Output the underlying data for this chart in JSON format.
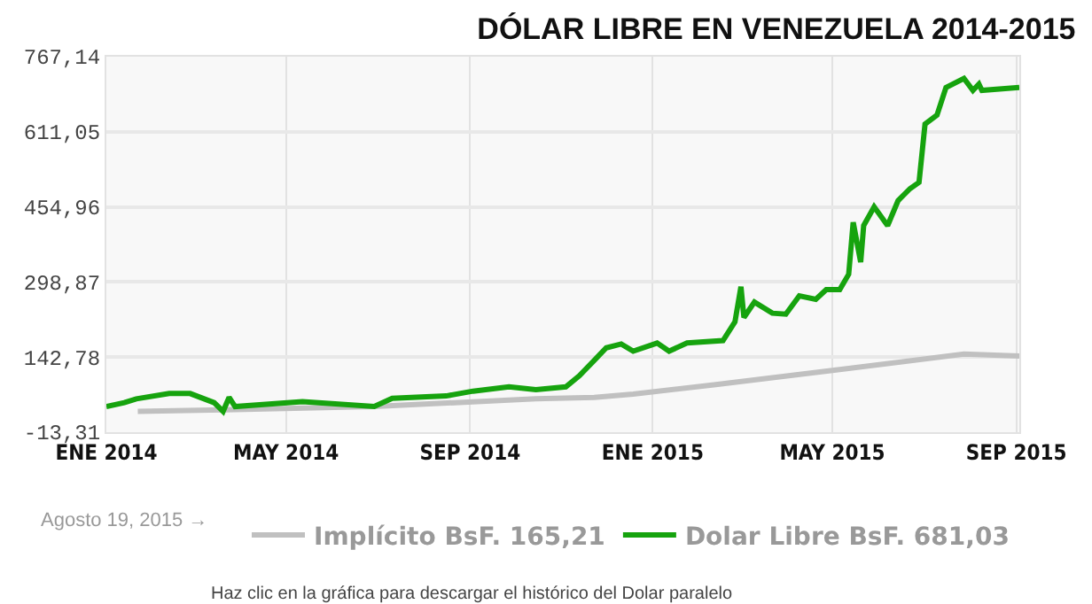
{
  "chart_data": {
    "type": "line",
    "title": "DÓLAR LIBRE EN VENEZUELA 2014-2015",
    "x": [
      "2014-01-01",
      "2014-01-13",
      "2014-01-21",
      "2014-02-12",
      "2014-02-26",
      "2014-03-14",
      "2014-03-20",
      "2014-03-24",
      "2014-03-28",
      "2014-05-12",
      "2014-06-29",
      "2014-07-11",
      "2014-08-16",
      "2014-09-03",
      "2014-09-27",
      "2014-10-15",
      "2014-11-04",
      "2014-11-13",
      "2014-11-23",
      "2014-12-01",
      "2014-12-11",
      "2014-12-19",
      "2015-01-04",
      "2015-01-12",
      "2015-01-24",
      "2015-02-17",
      "2015-02-25",
      "2015-03-01",
      "2015-03-03",
      "2015-03-10",
      "2015-03-22",
      "2015-03-31",
      "2015-04-09",
      "2015-04-20",
      "2015-04-27",
      "2015-05-06",
      "2015-05-12",
      "2015-05-15",
      "2015-05-20",
      "2015-05-22",
      "2015-05-29",
      "2015-06-07",
      "2015-06-14",
      "2015-06-22",
      "2015-06-28",
      "2015-07-02",
      "2015-07-10",
      "2015-07-16",
      "2015-07-28",
      "2015-08-03",
      "2015-08-07",
      "2015-08-09",
      "2015-09-03"
    ],
    "series": [
      {
        "name": "Implícito BsF. 165,21",
        "color": "#c0c0c0",
        "x": [
          "2014-01-22",
          "2014-03-20",
          "2014-06-29",
          "2014-10-15",
          "2014-11-23",
          "2014-12-19",
          "2015-02-11",
          "2015-05-06",
          "2015-07-28",
          "2015-09-03"
        ],
        "values": [
          30,
          33,
          40,
          56,
          59,
          66,
          85,
          117,
          149,
          145
        ]
      },
      {
        "name": "Dolar Libre BsF. 681,03",
        "color": "#16a30e",
        "values": [
          40,
          48,
          56,
          67,
          67,
          48,
          30,
          59,
          40,
          50,
          40,
          57,
          62,
          72,
          81,
          75,
          81,
          104,
          136,
          162,
          170,
          155,
          172,
          155,
          172,
          177,
          216,
          289,
          225,
          257,
          234,
          232,
          270,
          263,
          283,
          283,
          315,
          423,
          340,
          416,
          455,
          416,
          468,
          493,
          506,
          627,
          646,
          703,
          722,
          697,
          710,
          697,
          703
        ]
      }
    ],
    "xlim": [
      "2014-01-01",
      "2015-09-03"
    ],
    "xticks": [
      {
        "value": "2014-01-01",
        "label": "ENE 2014"
      },
      {
        "value": "2014-05-01",
        "label": "MAY 2014"
      },
      {
        "value": "2014-09-01",
        "label": "SEP 2014"
      },
      {
        "value": "2015-01-01",
        "label": "ENE 2015"
      },
      {
        "value": "2015-05-01",
        "label": "MAY 2015"
      },
      {
        "value": "2015-09-01",
        "label": "SEP 2015"
      }
    ],
    "ylim": [
      -13.31,
      767.14
    ],
    "yticks": [
      {
        "value": -13.31,
        "label": "-13,31"
      },
      {
        "value": 142.78,
        "label": "142,78"
      },
      {
        "value": 298.87,
        "label": "298,87"
      },
      {
        "value": 454.96,
        "label": "454,96"
      },
      {
        "value": 611.05,
        "label": "611,05"
      },
      {
        "value": 767.14,
        "label": "767,14"
      }
    ],
    "grid": true,
    "legend": "bottom right",
    "line_style": "solid",
    "annotations": [
      "Agosto 19, 2015 →",
      "Haz clic en la gráfica para descargar el histórico del Dolar paralelo"
    ]
  }
}
